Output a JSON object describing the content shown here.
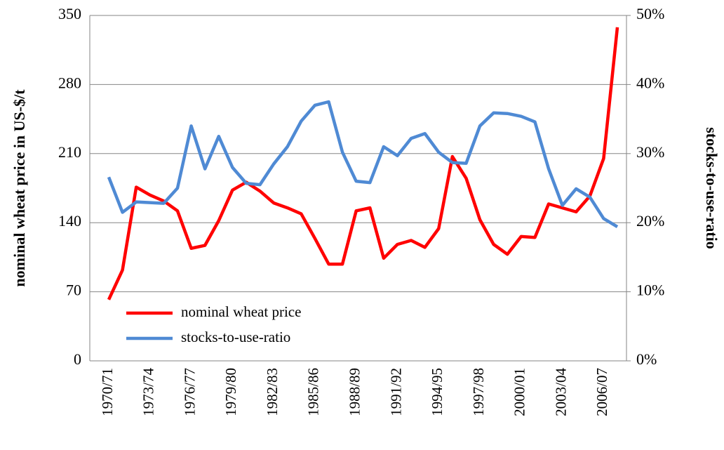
{
  "chart_data": {
    "type": "line",
    "ylabel": "nominal wheat price in US-$/t",
    "y2label": "stocks-to-use-ratio",
    "categories": [
      "1970/71",
      null,
      null,
      "1973/74",
      null,
      null,
      "1976/77",
      null,
      null,
      "1979/80",
      null,
      null,
      "1982/83",
      null,
      null,
      "1985/86",
      null,
      null,
      "1988/89",
      null,
      null,
      "1991/92",
      null,
      null,
      "1994/95",
      null,
      null,
      "1997/98",
      null,
      null,
      "2000/01",
      null,
      null,
      "2003/04",
      null,
      null,
      "2006/07",
      null
    ],
    "series": [
      {
        "name": "nominal wheat price",
        "color": "#ff0000",
        "values": [
          62,
          92,
          176,
          168,
          162,
          152,
          114,
          117,
          142,
          173,
          181,
          172,
          160,
          155,
          149,
          124,
          98,
          98,
          152,
          155,
          104,
          118,
          122,
          115,
          134,
          207,
          185,
          143,
          118,
          108,
          126,
          125,
          159,
          155,
          151,
          167,
          205,
          338
        ]
      },
      {
        "name": "stocks-to-use-ratio",
        "color": "#4f8ad4",
        "axis": "y2",
        "values": [
          26.6,
          21.5,
          23,
          22.9,
          22.8,
          25,
          34,
          27.8,
          32.5,
          28,
          25.7,
          25.5,
          28.5,
          31,
          34.7,
          37,
          37.5,
          30.2,
          26,
          25.8,
          31,
          29.7,
          32.2,
          32.9,
          30.2,
          28.7,
          28.6,
          34,
          35.9,
          35.8,
          35.4,
          34.6,
          27.8,
          22.5,
          24.9,
          23.7,
          20.6,
          19.4
        ]
      }
    ],
    "ylim": [
      0,
      350
    ],
    "yticks": [
      0,
      70,
      140,
      210,
      280,
      350
    ],
    "y2lim": [
      0,
      50
    ],
    "y2ticks": [
      {
        "value": 0,
        "label": "0%"
      },
      {
        "value": 10,
        "label": "10%"
      },
      {
        "value": 20,
        "label": "20%"
      },
      {
        "value": 30,
        "label": "30%"
      },
      {
        "value": 40,
        "label": "40%"
      },
      {
        "value": 50,
        "label": "50%"
      }
    ],
    "grid": true,
    "legend": "lower left"
  }
}
